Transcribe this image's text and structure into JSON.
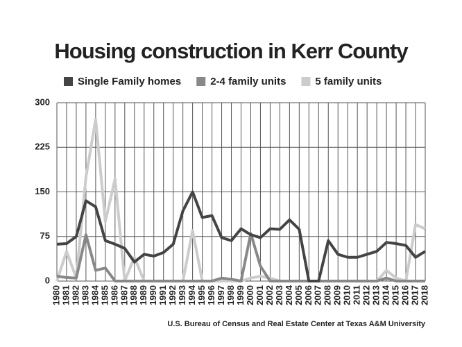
{
  "chart_data": {
    "type": "line",
    "title": "Housing construction in Kerr County",
    "source": "U.S. Bureau of Census and Real Estate Center at Texas A&M University",
    "categories": [
      "1980",
      "1981",
      "1982",
      "1983",
      "1984",
      "1985",
      "1986",
      "1987",
      "1988",
      "1989",
      "1990",
      "1991",
      "1992",
      "1993",
      "1994",
      "1995",
      "1996",
      "1997",
      "1998",
      "1999",
      "2000",
      "2001",
      "2002",
      "2003",
      "2004",
      "2005",
      "2006",
      "2007",
      "2008",
      "2009",
      "2010",
      "2011",
      "2012",
      "2013",
      "2014",
      "2015",
      "2016",
      "2017",
      "2018"
    ],
    "series": [
      {
        "name": "Single Family homes",
        "color": "#444444",
        "values": [
          62,
          63,
          75,
          135,
          125,
          68,
          62,
          55,
          32,
          45,
          42,
          48,
          62,
          118,
          150,
          107,
          110,
          73,
          68,
          88,
          78,
          73,
          88,
          87,
          103,
          87,
          0,
          0,
          68,
          45,
          40,
          40,
          45,
          50,
          65,
          63,
          60,
          40,
          50
        ]
      },
      {
        "name": "2-4 family units",
        "color": "#888888",
        "values": [
          8,
          6,
          5,
          78,
          18,
          22,
          0,
          0,
          0,
          0,
          0,
          0,
          0,
          0,
          0,
          0,
          0,
          5,
          3,
          0,
          80,
          25,
          0,
          0,
          0,
          0,
          0,
          0,
          0,
          0,
          0,
          0,
          0,
          0,
          5,
          0,
          0,
          0,
          0
        ]
      },
      {
        "name": "5 family units",
        "color": "#cccccc",
        "values": [
          0,
          50,
          5,
          175,
          272,
          100,
          172,
          0,
          40,
          0,
          0,
          0,
          0,
          0,
          85,
          0,
          0,
          0,
          0,
          0,
          5,
          8,
          5,
          0,
          0,
          0,
          0,
          0,
          0,
          0,
          0,
          0,
          0,
          0,
          18,
          5,
          0,
          95,
          88
        ]
      }
    ],
    "ylim": [
      0,
      300
    ],
    "yticks": [
      0,
      75,
      150,
      225,
      300
    ],
    "grid": true
  }
}
